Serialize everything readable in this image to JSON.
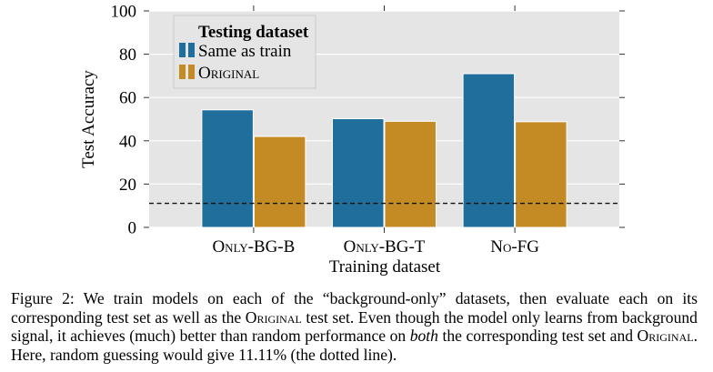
{
  "chart_data": {
    "type": "bar",
    "categories": [
      "Only-BG-B",
      "Only-BG-T",
      "No-FG"
    ],
    "series": [
      {
        "name": "Same as train",
        "color": "#1f6e9c",
        "values": [
          54.3,
          50.2,
          71.0
        ]
      },
      {
        "name": "Original",
        "color": "#c48a24",
        "values": [
          42.0,
          49.0,
          48.8
        ]
      }
    ],
    "xlabel": "Training dataset",
    "ylabel": "Test Accuracy",
    "ylim": [
      0,
      100
    ],
    "yticks": [
      "0",
      "20",
      "40",
      "60",
      "80",
      "100"
    ],
    "legend": {
      "title": "Testing dataset",
      "placement": "top-left"
    },
    "reference_line": {
      "value": 11.11,
      "style": "dashed"
    },
    "grid": true,
    "background": "#e5e5e5"
  },
  "caption": {
    "label": "Figure 2:",
    "p1": " We train models on each of the “background-only” datasets, then evaluate each on its corresponding test set as well as the ",
    "original1": "Original",
    "p2": " test set. Even though the model only learns from background signal, it achieves (much) better than random performance on ",
    "both": "both",
    "p3": " the corresponding test set and ",
    "original2": "Original",
    "p4": ". Here, random guessing would give 11.11% (the dotted line)."
  }
}
